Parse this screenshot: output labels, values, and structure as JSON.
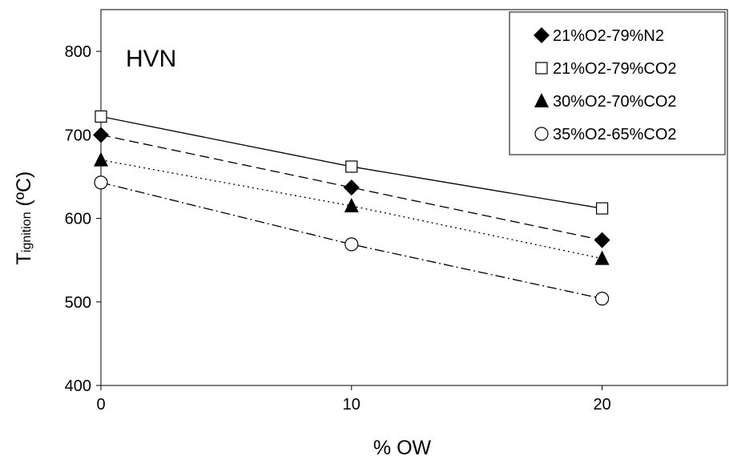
{
  "chart_data": {
    "type": "line",
    "annotation": "HVN",
    "xlabel": "% OW",
    "ylabel_main": "T",
    "ylabel_sub": "ignition",
    "ylabel_unit": " (ºC)",
    "x": [
      0,
      10,
      20
    ],
    "xlim": [
      0,
      25
    ],
    "ylim": [
      400,
      850
    ],
    "xticks": [
      0,
      10,
      20
    ],
    "yticks": [
      400,
      500,
      600,
      700,
      800
    ],
    "grid": false,
    "legend_position": "top-right",
    "series": [
      {
        "name": "21%O2-79%N2",
        "values": [
          700,
          637,
          574
        ],
        "marker": "diamond-filled",
        "line": "dashed"
      },
      {
        "name": "21%O2-79%CO2",
        "values": [
          722,
          662,
          612
        ],
        "marker": "square-open",
        "line": "solid"
      },
      {
        "name": "30%O2-70%CO2",
        "values": [
          670,
          615,
          552
        ],
        "marker": "triangle-filled",
        "line": "dotted"
      },
      {
        "name": "35%O2-65%CO2",
        "values": [
          643,
          569,
          504
        ],
        "marker": "circle-open",
        "line": "dash-dot"
      }
    ]
  }
}
